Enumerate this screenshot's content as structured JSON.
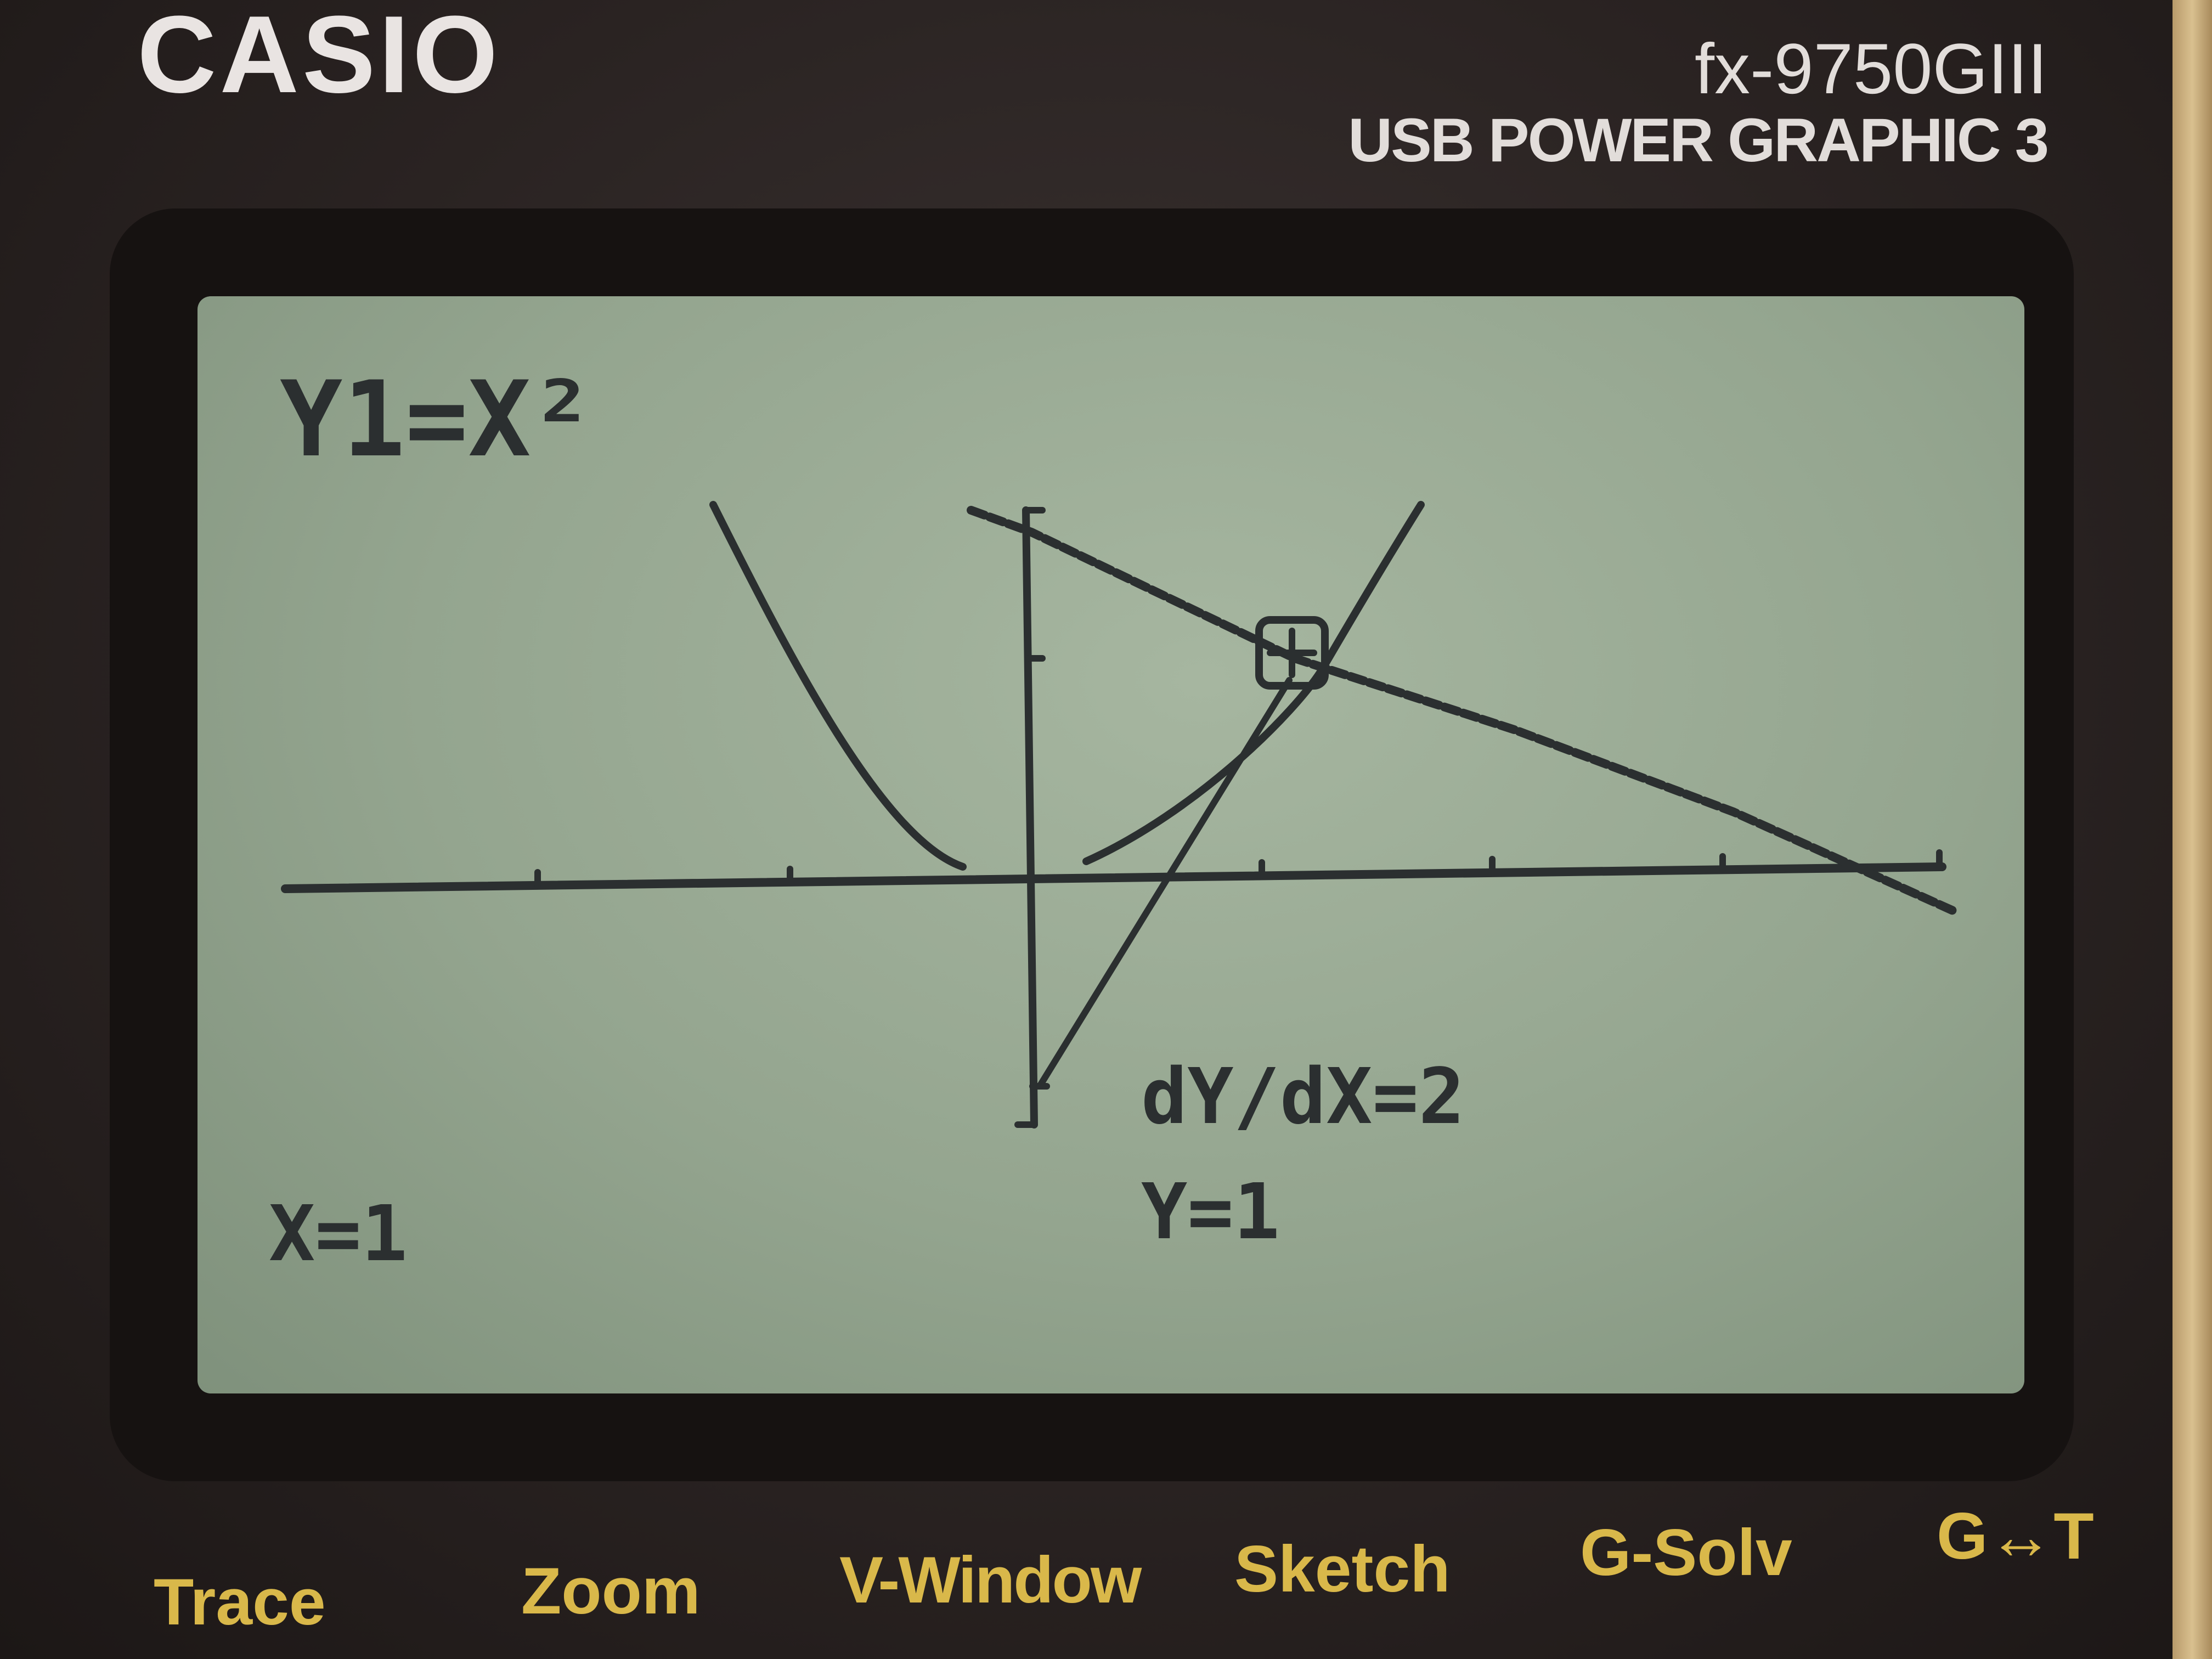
{
  "brand": "CASIO",
  "model": {
    "name": "fx-9750GIII",
    "subtitle": "USB POWER GRAPHIC 3"
  },
  "screen": {
    "function_label": "Y1=X²",
    "x_readout": "X=1",
    "y_readout": "Y=1",
    "derivative_readout": "dY/dX=2"
  },
  "function_keys": [
    {
      "label": "Trace"
    },
    {
      "label": "Zoom"
    },
    {
      "label": "V-Window"
    },
    {
      "label": "Sketch"
    },
    {
      "label": "G-Solv"
    },
    {
      "label": "G↔T"
    }
  ],
  "colors": {
    "lcd_background": "#9aab95",
    "lcd_pixel": "#2b2f30",
    "function_key_label": "#d9b84a",
    "casing": "#2a2322"
  }
}
